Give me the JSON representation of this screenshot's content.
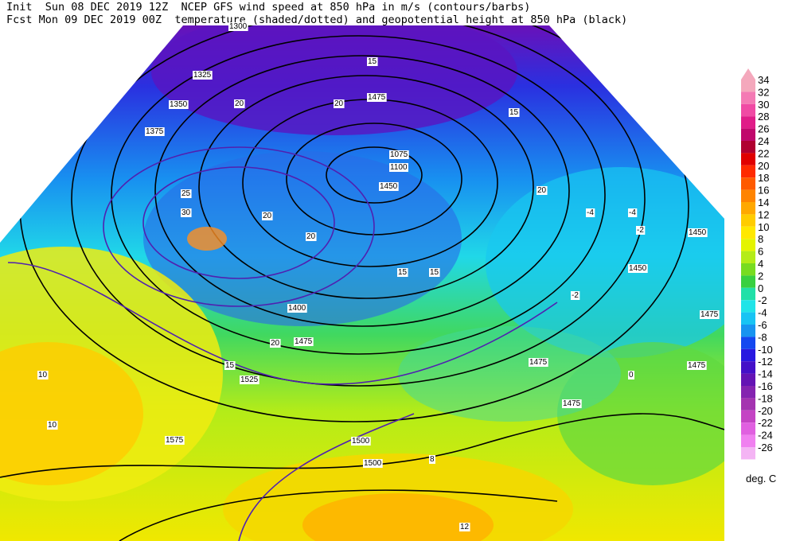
{
  "header": {
    "line1": "Init  Sun 08 DEC 2019 12Z  NCEP GFS wind speed at 850 hPa in m/s (contours/barbs)",
    "line2": "Fcst Mon 09 DEC 2019 00Z  temperature (shaded/dotted) and geopotential height at 850 hPa (black)"
  },
  "colorbar": {
    "unit": "deg. C",
    "labels": [
      34,
      32,
      30,
      28,
      26,
      24,
      22,
      20,
      18,
      16,
      14,
      12,
      10,
      8,
      6,
      4,
      2,
      0,
      -2,
      -4,
      -6,
      -8,
      -10,
      -12,
      -14,
      -16,
      -18,
      -20,
      -22,
      -24,
      -26
    ],
    "colors": [
      "#f4a8bc",
      "#f47ab4",
      "#f04aa4",
      "#e01c88",
      "#c0086c",
      "#b00030",
      "#e00000",
      "#ff2a00",
      "#ff5a00",
      "#ff8400",
      "#ffa800",
      "#ffcc00",
      "#ffe800",
      "#e4f400",
      "#b4ec18",
      "#78dc20",
      "#38d040",
      "#20e0a8",
      "#20e4e8",
      "#18c4f4",
      "#1894f0",
      "#1448f0",
      "#2818e0",
      "#4410c8",
      "#6414b4",
      "#8424b0",
      "#a434b0",
      "#c444c4",
      "#e060e0",
      "#f080f0",
      "#f4b4f4"
    ]
  },
  "map_labels": [
    "1300",
    "1325",
    "1350",
    "1375",
    "1450",
    "1475",
    "1450",
    "1450",
    "1475",
    "1475",
    "1475",
    "1475",
    "1500",
    "1500",
    "1525",
    "1575",
    "1400",
    "1475",
    "15",
    "15",
    "20",
    "20",
    "25",
    "30",
    "20",
    "20",
    "20",
    "15",
    "15",
    "15",
    "-4",
    "-4",
    "-2",
    "-2",
    "0",
    "10",
    "10",
    "8",
    "12",
    "20",
    "1075",
    "1100"
  ]
}
